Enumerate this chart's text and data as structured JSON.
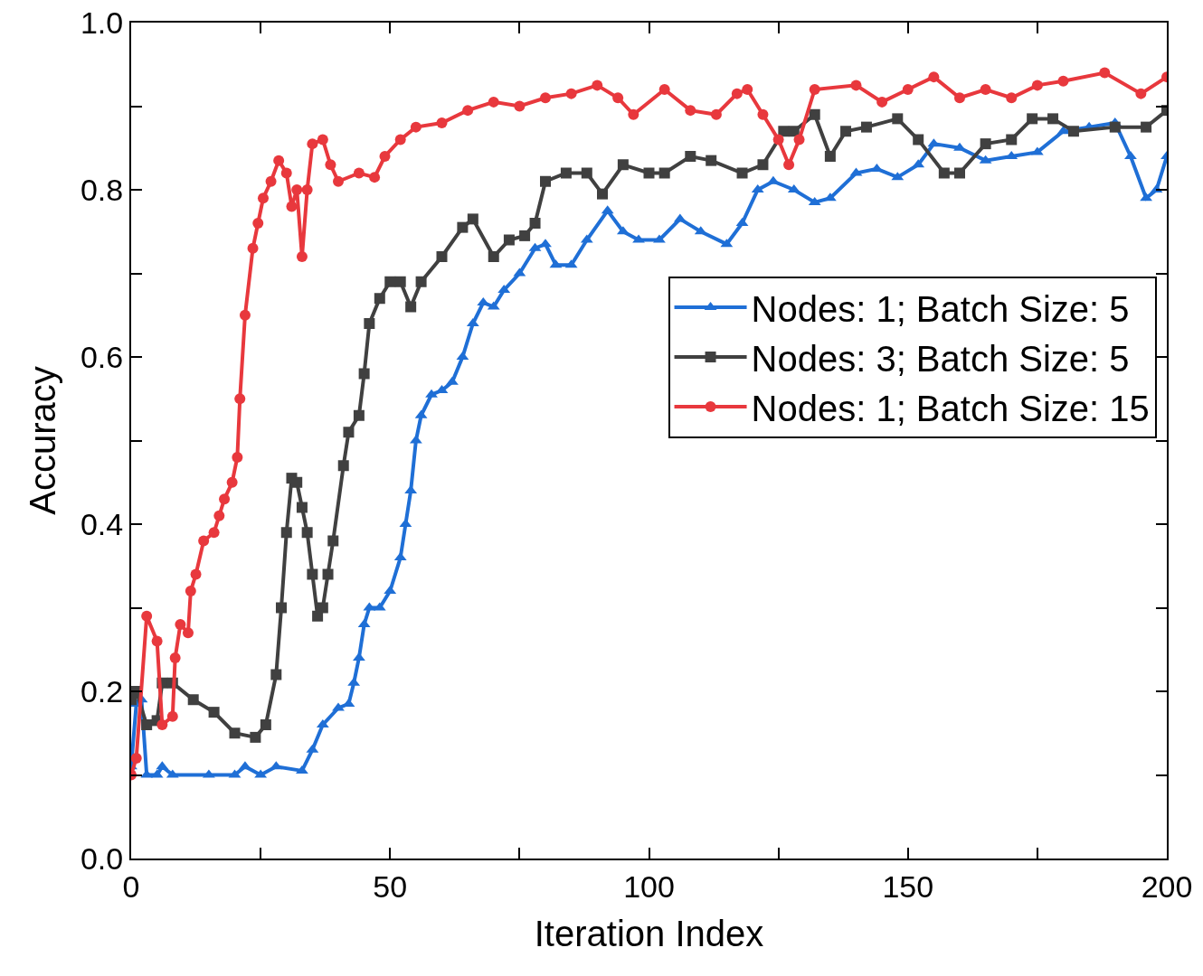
{
  "chart_data": {
    "type": "line",
    "xlabel": "Iteration Index",
    "ylabel": "Accuracy",
    "xlim": [
      0,
      200
    ],
    "ylim": [
      0,
      1
    ],
    "xticks": [
      0,
      {
        "value": 25,
        "label": null
      },
      50,
      {
        "value": 75,
        "label": null
      },
      100,
      {
        "value": 125,
        "label": null
      },
      150,
      {
        "value": 175,
        "label": null
      },
      200
    ],
    "yticks": [
      {
        "value": 0,
        "label": "0.0"
      },
      {
        "value": 0.1,
        "label": null
      },
      {
        "value": 0.2,
        "label": "0.2"
      },
      {
        "value": 0.3,
        "label": null
      },
      {
        "value": 0.4,
        "label": "0.4"
      },
      {
        "value": 0.5,
        "label": null
      },
      {
        "value": 0.6,
        "label": "0.6"
      },
      {
        "value": 0.7,
        "label": null
      },
      {
        "value": 0.8,
        "label": "0.8"
      },
      {
        "value": 0.9,
        "label": null
      },
      {
        "value": 1,
        "label": "1.0"
      }
    ],
    "grid": false,
    "legend": "right",
    "line_style": "solid",
    "series": [
      {
        "name": "Nodes: 1; Batch Size: 5",
        "color": "#1f6fd6",
        "marker": "triangle",
        "x": [
          0,
          1,
          2,
          3,
          5,
          6,
          8,
          15,
          20,
          22,
          25,
          28,
          33,
          35,
          37,
          40,
          42,
          43,
          44,
          45,
          46,
          48,
          50,
          52,
          53,
          54,
          55,
          56,
          58,
          60,
          62,
          64,
          66,
          68,
          70,
          72,
          75,
          78,
          80,
          82,
          85,
          88,
          92,
          95,
          98,
          102,
          106,
          110,
          115,
          118,
          121,
          124,
          128,
          132,
          135,
          140,
          144,
          148,
          152,
          155,
          160,
          165,
          170,
          175,
          180,
          185,
          190,
          193,
          196,
          198,
          200
        ],
        "values": [
          0.11,
          0.185,
          0.19,
          0.1,
          0.1,
          0.11,
          0.1,
          0.1,
          0.1,
          0.11,
          0.1,
          0.11,
          0.105,
          0.13,
          0.16,
          0.18,
          0.185,
          0.21,
          0.24,
          0.28,
          0.3,
          0.3,
          0.32,
          0.36,
          0.4,
          0.44,
          0.5,
          0.53,
          0.555,
          0.56,
          0.57,
          0.6,
          0.64,
          0.665,
          0.66,
          0.68,
          0.7,
          0.73,
          0.735,
          0.71,
          0.71,
          0.74,
          0.775,
          0.75,
          0.74,
          0.74,
          0.765,
          0.75,
          0.735,
          0.76,
          0.8,
          0.81,
          0.8,
          0.785,
          0.79,
          0.82,
          0.825,
          0.815,
          0.83,
          0.855,
          0.85,
          0.835,
          0.84,
          0.845,
          0.87,
          0.875,
          0.88,
          0.84,
          0.79,
          0.8,
          0.84
        ]
      },
      {
        "name": "Nodes: 3; Batch Size: 5",
        "color": "#404040",
        "marker": "square",
        "x": [
          0,
          1,
          3,
          5,
          6,
          8,
          12,
          16,
          20,
          24,
          26,
          28,
          29,
          30,
          31,
          32,
          33,
          34,
          35,
          36,
          37,
          38,
          39,
          41,
          42,
          44,
          45,
          46,
          48,
          50,
          52,
          54,
          56,
          60,
          64,
          66,
          70,
          73,
          76,
          78,
          80,
          84,
          88,
          91,
          95,
          100,
          103,
          108,
          112,
          118,
          122,
          126,
          128,
          132,
          135,
          138,
          142,
          148,
          152,
          157,
          160,
          165,
          170,
          174,
          178,
          182,
          190,
          196,
          200
        ],
        "values": [
          0.19,
          0.2,
          0.16,
          0.165,
          0.21,
          0.21,
          0.19,
          0.175,
          0.15,
          0.145,
          0.16,
          0.22,
          0.3,
          0.39,
          0.455,
          0.45,
          0.42,
          0.39,
          0.34,
          0.29,
          0.3,
          0.34,
          0.38,
          0.47,
          0.51,
          0.53,
          0.58,
          0.64,
          0.67,
          0.69,
          0.69,
          0.66,
          0.69,
          0.72,
          0.755,
          0.765,
          0.72,
          0.74,
          0.745,
          0.76,
          0.81,
          0.82,
          0.82,
          0.795,
          0.83,
          0.82,
          0.82,
          0.84,
          0.835,
          0.82,
          0.83,
          0.87,
          0.87,
          0.89,
          0.84,
          0.87,
          0.875,
          0.885,
          0.86,
          0.82,
          0.82,
          0.855,
          0.86,
          0.885,
          0.885,
          0.87,
          0.875,
          0.875,
          0.895
        ]
      },
      {
        "name": "Nodes: 1; Batch Size: 15",
        "color": "#e8383d",
        "marker": "circle",
        "x": [
          0,
          1,
          3,
          5,
          6,
          8,
          8.5,
          9.5,
          11,
          11.5,
          12.5,
          14,
          16,
          17,
          18,
          19.5,
          20.5,
          21,
          22,
          23.5,
          24.5,
          25.5,
          27,
          28.5,
          30,
          31,
          32,
          33,
          34,
          35,
          37,
          38.5,
          40,
          44,
          47,
          49,
          52,
          55,
          60,
          65,
          70,
          75,
          80,
          85,
          90,
          94,
          97,
          103,
          108,
          113,
          117,
          119,
          122,
          125,
          127,
          129,
          132,
          140,
          145,
          150,
          155,
          160,
          165,
          170,
          175,
          180,
          188,
          195,
          200
        ],
        "values": [
          0.1,
          0.12,
          0.29,
          0.26,
          0.16,
          0.17,
          0.24,
          0.28,
          0.27,
          0.32,
          0.34,
          0.38,
          0.39,
          0.41,
          0.43,
          0.45,
          0.48,
          0.55,
          0.65,
          0.73,
          0.76,
          0.79,
          0.81,
          0.835,
          0.82,
          0.78,
          0.8,
          0.72,
          0.8,
          0.855,
          0.86,
          0.83,
          0.81,
          0.82,
          0.815,
          0.84,
          0.86,
          0.875,
          0.88,
          0.895,
          0.905,
          0.9,
          0.91,
          0.915,
          0.925,
          0.91,
          0.89,
          0.92,
          0.895,
          0.89,
          0.915,
          0.92,
          0.89,
          0.86,
          0.83,
          0.86,
          0.92,
          0.925,
          0.905,
          0.92,
          0.935,
          0.91,
          0.92,
          0.91,
          0.925,
          0.93,
          0.94,
          0.915,
          0.935
        ]
      }
    ]
  }
}
